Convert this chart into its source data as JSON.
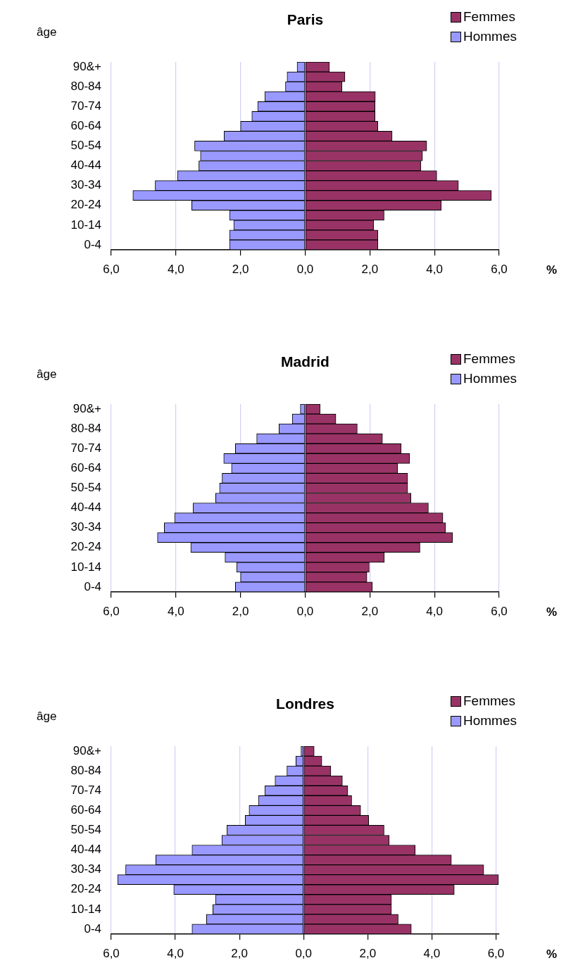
{
  "chart_data": [
    {
      "type": "bar",
      "title": "Paris",
      "ylabel": "âge",
      "xlabel": "%",
      "orientation": "horizontal",
      "stacked": true,
      "grid": "x",
      "legend": "top right",
      "categories": [
        "90&+",
        null,
        "80-84",
        null,
        "70-74",
        null,
        "60-64",
        null,
        "50-54",
        null,
        "40-44",
        null,
        "30-34",
        null,
        "20-24",
        null,
        "10-14",
        null,
        "0-4"
      ],
      "xlim": [
        -6,
        6
      ],
      "xticks": [
        {
          "value": -6,
          "label": "6,0"
        },
        {
          "value": -4,
          "label": "4,0"
        },
        {
          "value": -2,
          "label": "2,0"
        },
        {
          "value": 0,
          "label": "0,0"
        },
        {
          "value": 2,
          "label": "2,0"
        },
        {
          "value": 4,
          "label": "4,0"
        },
        {
          "value": 6,
          "label": "6,0"
        }
      ],
      "series": [
        {
          "name": "Femmes",
          "color": "#993366",
          "values": [
            0.75,
            1.23,
            1.14,
            2.17,
            2.16,
            2.16,
            2.25,
            2.69,
            3.76,
            3.63,
            3.58,
            4.07,
            4.74,
            5.76,
            4.21,
            2.44,
            2.12,
            2.25,
            2.25
          ]
        },
        {
          "name": "Hommes",
          "color": "#9999ff",
          "values": [
            -0.25,
            -0.56,
            -0.61,
            -1.25,
            -1.47,
            -1.65,
            -2.0,
            -2.51,
            -3.42,
            -3.24,
            -3.29,
            -3.95,
            -4.64,
            -5.33,
            -3.51,
            -2.34,
            -2.21,
            -2.34,
            -2.34
          ]
        }
      ]
    },
    {
      "type": "bar",
      "title": "Madrid",
      "ylabel": "âge",
      "xlabel": "%",
      "orientation": "horizontal",
      "stacked": true,
      "grid": "x",
      "legend": "top right",
      "categories": [
        "90&+",
        null,
        "80-84",
        null,
        "70-74",
        null,
        "60-64",
        null,
        "50-54",
        null,
        "40-44",
        null,
        "30-34",
        null,
        "20-24",
        null,
        "10-14",
        null,
        "0-4"
      ],
      "xlim": [
        -6,
        6
      ],
      "xticks": [
        {
          "value": -6,
          "label": "6,0"
        },
        {
          "value": -4,
          "label": "4,0"
        },
        {
          "value": -2,
          "label": "2,0"
        },
        {
          "value": 0,
          "label": "0,0"
        },
        {
          "value": 2,
          "label": "2,0"
        },
        {
          "value": 4,
          "label": "4,0"
        },
        {
          "value": 6,
          "label": "6,0"
        }
      ],
      "series": [
        {
          "name": "Femmes",
          "color": "#993366",
          "values": [
            0.46,
            0.95,
            1.61,
            2.39,
            2.97,
            3.23,
            2.86,
            3.17,
            3.17,
            3.27,
            3.81,
            4.26,
            4.34,
            4.56,
            3.55,
            2.45,
            1.98,
            1.91,
            2.08
          ]
        },
        {
          "name": "Hommes",
          "color": "#9999ff",
          "values": [
            -0.15,
            -0.4,
            -0.81,
            -1.5,
            -2.16,
            -2.52,
            -2.28,
            -2.57,
            -2.65,
            -2.77,
            -3.47,
            -4.04,
            -4.36,
            -4.57,
            -3.54,
            -2.48,
            -2.12,
            -2.0,
            -2.16
          ]
        }
      ]
    },
    {
      "type": "bar",
      "title": "Londres",
      "ylabel": "âge",
      "xlabel": "%",
      "orientation": "horizontal",
      "stacked": true,
      "grid": "x",
      "legend": "top right",
      "categories": [
        "90&+",
        null,
        "80-84",
        null,
        "70-74",
        null,
        "60-64",
        null,
        "50-54",
        null,
        "40-44",
        null,
        "30-34",
        null,
        "20-24",
        null,
        "10-14",
        null,
        "0-4"
      ],
      "xlim": [
        -6,
        6.1
      ],
      "xticks": [
        {
          "value": -6,
          "label": "6,0"
        },
        {
          "value": -4,
          "label": "4,0"
        },
        {
          "value": -2,
          "label": "2,0"
        },
        {
          "value": 0,
          "label": "0,0"
        },
        {
          "value": 2,
          "label": "2,0"
        },
        {
          "value": 4,
          "label": "4,0"
        },
        {
          "value": 6,
          "label": "6,0"
        }
      ],
      "series": [
        {
          "name": "Femmes",
          "color": "#993366",
          "values": [
            0.33,
            0.57,
            0.85,
            1.21,
            1.38,
            1.5,
            1.78,
            2.03,
            2.51,
            2.67,
            3.48,
            4.61,
            5.62,
            6.08,
            4.7,
            2.74,
            2.74,
            2.95,
            3.36
          ]
        },
        {
          "name": "Hommes",
          "color": "#9999ff",
          "values": [
            -0.08,
            -0.24,
            -0.52,
            -0.89,
            -1.21,
            -1.41,
            -1.7,
            -1.82,
            -2.39,
            -2.55,
            -3.48,
            -4.61,
            -5.55,
            -5.8,
            -4.05,
            -2.75,
            -2.83,
            -3.03,
            -3.48
          ]
        }
      ]
    }
  ]
}
